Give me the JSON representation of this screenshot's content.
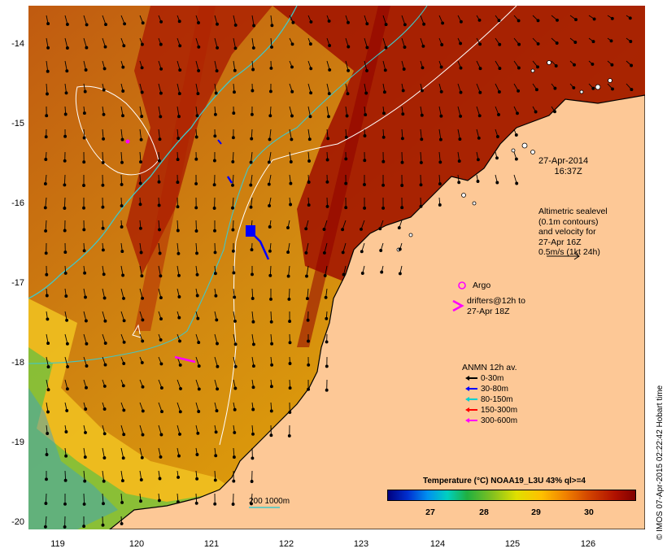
{
  "map": {
    "lat_ticks": [
      "-14",
      "-15",
      "-16",
      "-17",
      "-18",
      "-19",
      "-20"
    ],
    "lon_ticks": [
      "119",
      "120",
      "121",
      "122",
      "123",
      "124",
      "125",
      "126"
    ],
    "date_label": "27-Apr-2014",
    "time_label": "16:37Z",
    "altimetry_lines": [
      "Altimetric sealevel",
      "(0.1m contours)",
      "and velocity for",
      "27-Apr 16Z",
      "0.5m/s (1kt 24h)"
    ],
    "argo_label": "Argo",
    "drifters_lines": [
      "drifters@12h to",
      "27-Apr 18Z"
    ],
    "anmn_title": "ANMN 12h av.",
    "anmn_items": [
      {
        "label": "0-30m",
        "color": "#000000"
      },
      {
        "label": "30-80m",
        "color": "#0000ff"
      },
      {
        "label": "80-150m",
        "color": "#00d0d0"
      },
      {
        "label": "150-300m",
        "color": "#ff0000"
      },
      {
        "label": "300-600m",
        "color": "#ff00ff"
      }
    ],
    "colorbar_title": "Temperature (°C) NOAA19_L3U 43% ql>=4",
    "colorbar_ticks": [
      "27",
      "28",
      "29",
      "30"
    ],
    "scale_label": "200  1000m",
    "credit": "© IMOS 07-Apr-2015 02:22:42 Hobart time",
    "colors": {
      "land": "#fdc896",
      "sst_warm": "#a00000",
      "sst_mid": "#d07010",
      "sst_cool": "#f0b000",
      "contour_200": "#40c8c8",
      "sealevel_contour": "#ffffff",
      "argo": "#ff00ff"
    }
  }
}
